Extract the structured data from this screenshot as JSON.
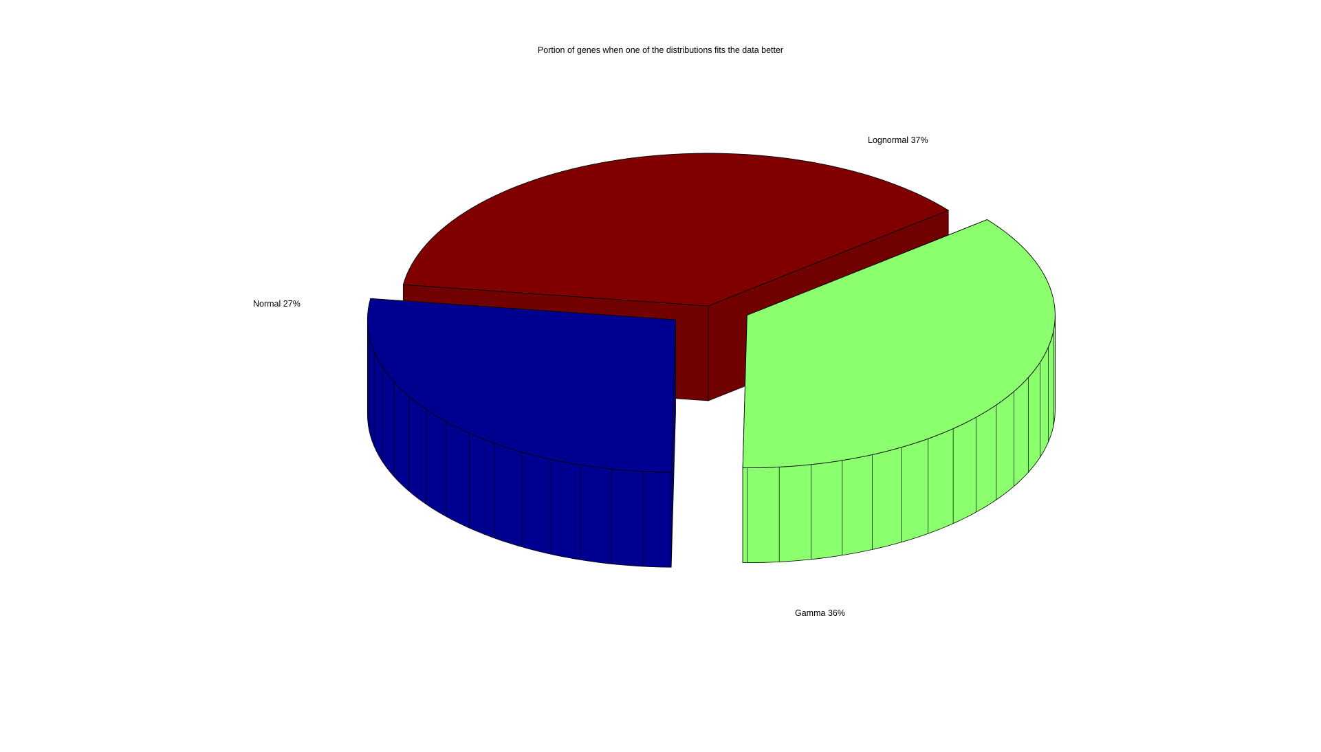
{
  "chart_data": {
    "type": "pie",
    "title": "Portion of genes when one of the distributions fits the data better",
    "slices": [
      {
        "label": "Lognormal",
        "percent_text": "37%",
        "value": 37,
        "color": "#800000",
        "exploded": false
      },
      {
        "label": "Gamma",
        "percent_text": "36%",
        "value": 36,
        "color": "#8cff6e",
        "exploded": true
      },
      {
        "label": "Normal",
        "percent_text": "27%",
        "value": 27,
        "color": "#000090",
        "exploded": true
      }
    ],
    "style": "3d-exploded"
  }
}
